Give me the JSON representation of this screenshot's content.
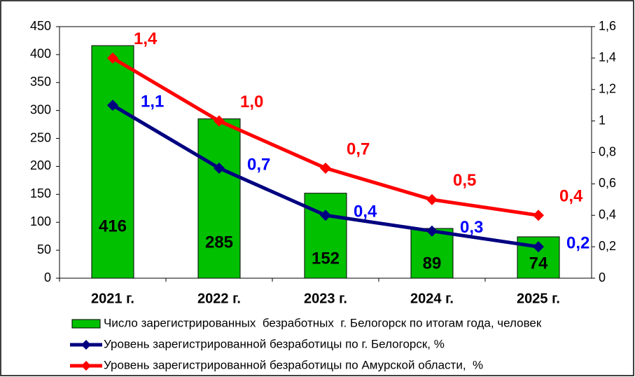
{
  "chart_data": {
    "type": "combo",
    "categories": [
      "2021 г.",
      "2022 г.",
      "2023 г.",
      "2024 г.",
      "2025 г."
    ],
    "series": [
      {
        "name": "Число зарегистрированных  безработных  г. Белогорск по итогам года, человек",
        "type": "bar",
        "color": "#00c000",
        "values": [
          416,
          285,
          152,
          89,
          74
        ]
      },
      {
        "name": "Уровень зарегистрированной безработицы по г. Белогорск, %",
        "type": "line",
        "axis": "y2",
        "color": "#000080",
        "label_color": "#0000ff",
        "values": [
          1.1,
          0.7,
          0.4,
          0.3,
          0.2
        ],
        "value_labels": [
          "1,1",
          "0,7",
          "0,4",
          "0,3",
          "0,2"
        ]
      },
      {
        "name": "Уровень зарегистрированной безработицы по Амурской области,  %",
        "type": "line",
        "axis": "y2",
        "color": "#ff0000",
        "label_color": "#ff0000",
        "values": [
          1.4,
          1.0,
          0.7,
          0.5,
          0.4
        ],
        "value_labels": [
          "1,4",
          "1,0",
          "0,7",
          "0,5",
          "0,4"
        ]
      }
    ],
    "ylim": [
      0,
      450
    ],
    "yticks": [
      0,
      50,
      100,
      150,
      200,
      250,
      300,
      350,
      400,
      450
    ],
    "y2lim": [
      0,
      1.6
    ],
    "y2ticks": [
      0,
      {
        "value": 0.2,
        "label": "0,2"
      },
      {
        "value": 0.4,
        "label": "0,4"
      },
      {
        "value": 0.6,
        "label": "0,6"
      },
      {
        "value": 0.8,
        "label": "0,8"
      },
      1,
      {
        "value": 1.2,
        "label": "1,2"
      },
      {
        "value": 1.4,
        "label": "1,4"
      },
      {
        "value": 1.6,
        "label": "1,6"
      }
    ],
    "legend": "bottom"
  }
}
